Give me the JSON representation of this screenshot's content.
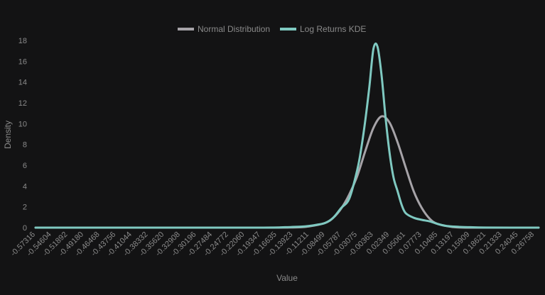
{
  "chart_data": {
    "type": "line",
    "title": "",
    "xlabel": "Value",
    "ylabel": "Density",
    "ylim": [
      0,
      18
    ],
    "yticks": [
      0,
      2,
      4,
      6,
      8,
      10,
      12,
      14,
      16,
      18
    ],
    "xlim": [
      -0.57316,
      0.2747
    ],
    "x_tick_labels": [
      "-0.57316",
      "-0.54604",
      "-0.51892",
      "-0.49180",
      "-0.46468",
      "-0.43756",
      "-0.41044",
      "-0.38332",
      "-0.35620",
      "-0.32908",
      "-0.30196",
      "-0.27484",
      "-0.24772",
      "-0.22060",
      "-0.19347",
      "-0.16635",
      "-0.13923",
      "-0.11211",
      "-0.08499",
      "-0.05787",
      "-0.03075",
      "-0.00363",
      "0.02349",
      "0.05061",
      "0.07773",
      "0.10485",
      "0.13197",
      "0.15909",
      "0.18621",
      "0.21333",
      "0.24045",
      "0.26758"
    ],
    "x_tick_values": [
      -0.57316,
      -0.54604,
      -0.51892,
      -0.4918,
      -0.46468,
      -0.43756,
      -0.41044,
      -0.38332,
      -0.3562,
      -0.32908,
      -0.30196,
      -0.27484,
      -0.24772,
      -0.2206,
      -0.19347,
      -0.16635,
      -0.13923,
      -0.11211,
      -0.08499,
      -0.05787,
      -0.03075,
      -0.00363,
      0.02349,
      0.05061,
      0.07773,
      0.10485,
      0.13197,
      0.15909,
      0.18621,
      0.21333,
      0.24045,
      0.26758
    ],
    "grid": false,
    "legend_position": "top-center",
    "series": [
      {
        "name": "Normal Distribution",
        "color": "#a6a3a8",
        "x": [
          -0.57316,
          -0.2206,
          -0.13923,
          -0.11211,
          -0.08499,
          -0.07143,
          -0.05787,
          -0.04431,
          -0.03075,
          -0.01719,
          -0.00363,
          0.00993,
          0.02349,
          0.03705,
          0.05061,
          0.06417,
          0.07773,
          0.09129,
          0.10485,
          0.13197,
          0.15909,
          0.2747
        ],
        "y": [
          0,
          0,
          0.02,
          0.12,
          0.45,
          0.95,
          1.85,
          3.2,
          5.0,
          7.4,
          9.6,
          10.7,
          10.1,
          8.2,
          5.8,
          3.5,
          1.9,
          0.85,
          0.35,
          0.05,
          0,
          0
        ]
      },
      {
        "name": "Log Returns KDE",
        "color": "#7fc9c1",
        "x": [
          -0.57316,
          -0.2206,
          -0.15279,
          -0.13923,
          -0.12567,
          -0.11211,
          -0.09855,
          -0.08499,
          -0.07143,
          -0.05787,
          -0.04431,
          -0.03075,
          -0.02397,
          -0.01719,
          -0.01041,
          -0.00363,
          0.00315,
          0.00993,
          0.01671,
          0.02349,
          0.03027,
          0.03705,
          0.04383,
          0.05061,
          0.06417,
          0.07773,
          0.09129,
          0.10485,
          0.11841,
          0.13197,
          0.14553,
          0.15909,
          0.18621,
          0.2747
        ],
        "y": [
          0,
          0,
          0.04,
          0.07,
          0.09,
          0.16,
          0.28,
          0.45,
          0.95,
          1.9,
          2.8,
          5.6,
          7.7,
          10.4,
          13.6,
          17.2,
          17.4,
          14.7,
          10.6,
          7.2,
          4.8,
          3.5,
          2.2,
          1.4,
          0.95,
          0.75,
          0.6,
          0.35,
          0.17,
          0.1,
          0.06,
          0.04,
          0.01,
          0
        ]
      }
    ]
  }
}
